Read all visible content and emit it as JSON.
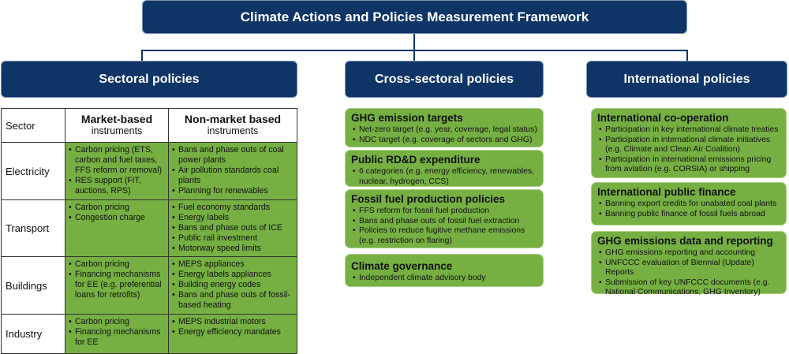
{
  "title": "Climate Actions and Policies Measurement Framework",
  "columns": {
    "sectoral": "Sectoral policies",
    "cross": "Cross-sectoral policies",
    "international": "International policies"
  },
  "table": {
    "sector_header": "Sector",
    "market_title": "Market-based",
    "market_sub": "instruments",
    "nonmarket_title": "Non-market based",
    "nonmarket_sub": "instruments",
    "rows": [
      {
        "sector": "Electricity",
        "market": [
          "Carbon pricing (ETS, carbon and fuel taxes, FFS reform or removal)",
          "RES support (FiT, auctions, RPS)"
        ],
        "nonmarket": [
          "Bans and phase outs of coal power plants",
          "Air pollution standards coal plants",
          "Planning for renewables"
        ]
      },
      {
        "sector": "Transport",
        "market": [
          "Carbon pricing",
          "Congestion charge"
        ],
        "nonmarket": [
          "Fuel economy standards",
          "Energy labels",
          "Bans and phase outs of ICE",
          "Public rail investment",
          "Motorway speed limits"
        ]
      },
      {
        "sector": "Buildings",
        "market": [
          "Carbon pricing",
          "Financing mechanisms for EE (e.g. preferential loans for retrofits)"
        ],
        "nonmarket": [
          "MEPS appliances",
          "Energy labels appliances",
          "Building energy codes",
          "Bans and phase outs of fossil-based heating"
        ]
      },
      {
        "sector": "Industry",
        "market": [
          "Carbon pricing",
          "Financing mechanisms for EE"
        ],
        "nonmarket": [
          "MEPS industrial motors",
          "Energy efficiency mandates"
        ]
      }
    ]
  },
  "cross_sectoral": [
    {
      "title": "GHG emission targets",
      "items": [
        "Net-zero target (e.g. year, coverage, legal status)",
        "NDC target (e.g. coverage of sectors and GHG)"
      ]
    },
    {
      "title": "Public RD&D expenditure",
      "items": [
        "6 categories (e.g. energy efficiency, renewables, nuclear, hydrogen, CCS)"
      ]
    },
    {
      "title": "Fossil fuel production policies",
      "items": [
        "FFS reform for fossil fuel production",
        "Bans and phase outs of fossil fuel extraction",
        "Policies to reduce fugitive methane emissions (e.g. restriction on flaring)"
      ]
    },
    {
      "title": "Climate governance",
      "items": [
        "Independent climate advisory body"
      ]
    }
  ],
  "international": [
    {
      "title": "International co-operation",
      "items": [
        "Participation in key international climate treaties",
        "Participation in international climate initiatives (e.g. Climate and Clean Air Coalition)",
        "Participation in international emissions pricing from aviation (e.g. CORSIA) or shipping"
      ]
    },
    {
      "title": "International public finance",
      "items": [
        "Banning export credits for unabated coal plants",
        "Banning public finance of fossil fuels abroad"
      ]
    },
    {
      "title": "GHG emissions data and reporting",
      "items": [
        "GHG emissions reporting and accounting",
        "UNFCCC evaluation of Biennial (Update) Reports",
        "Submission of key UNFCCC documents (e.g. National Communications, GHG Inventory)"
      ]
    }
  ]
}
